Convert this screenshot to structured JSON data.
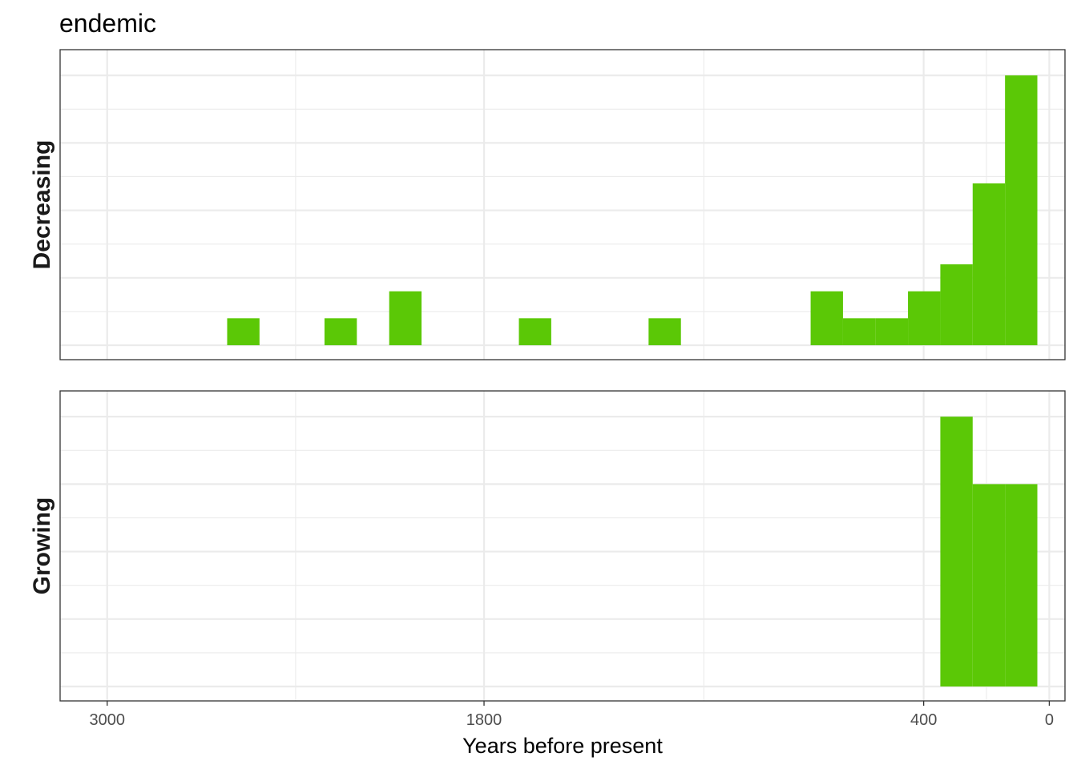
{
  "chart_data": {
    "type": "bar",
    "title": "endemic",
    "xlabel": "Years before present",
    "ylabel": "",
    "x_reversed": true,
    "xlim": [
      3150,
      -50
    ],
    "x_ticks": [
      3000,
      1800,
      400,
      0
    ],
    "x_tick_labels": [
      "3000",
      "1800",
      "400",
      "0"
    ],
    "bin_width": 103.2,
    "grid": true,
    "y_axis_labels_shown": false,
    "bar_color": "#5BC806",
    "facets": [
      {
        "label": "Decreasing",
        "ymax": 10.45,
        "bars": [
          {
            "start": 2618,
            "end": 2515,
            "count": 1
          },
          {
            "start": 2308,
            "end": 2205,
            "count": 1
          },
          {
            "start": 2102,
            "end": 1999,
            "count": 2
          },
          {
            "start": 1689,
            "end": 1586,
            "count": 1
          },
          {
            "start": 1276,
            "end": 1173,
            "count": 1
          },
          {
            "start": 760,
            "end": 657,
            "count": 2
          },
          {
            "start": 657,
            "end": 554,
            "count": 1
          },
          {
            "start": 554,
            "end": 450,
            "count": 1
          },
          {
            "start": 450,
            "end": 347,
            "count": 2
          },
          {
            "start": 347,
            "end": 244,
            "count": 3
          },
          {
            "start": 244,
            "end": 141,
            "count": 6
          },
          {
            "start": 141,
            "end": 38,
            "count": 10
          }
        ]
      },
      {
        "label": "Growing",
        "ymax": 10.45,
        "bars": [
          {
            "start": 347,
            "end": 244,
            "count": 10
          },
          {
            "start": 244,
            "end": 141,
            "count": 7.5
          },
          {
            "start": 141,
            "end": 38,
            "count": 7.5
          }
        ]
      }
    ]
  }
}
